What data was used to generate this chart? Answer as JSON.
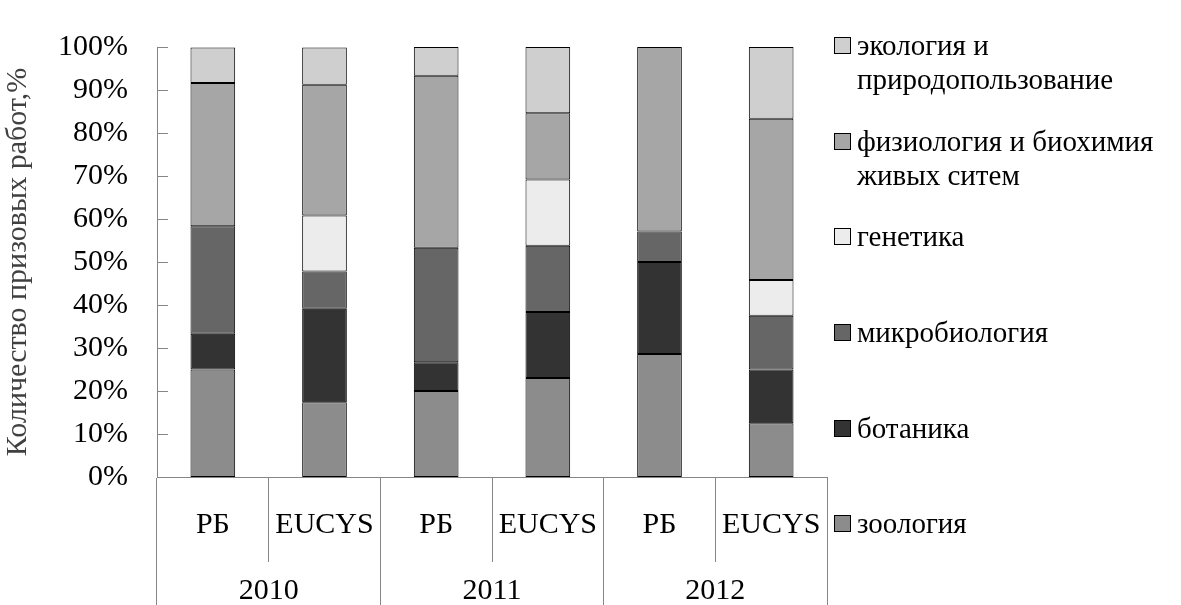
{
  "chart_data": {
    "type": "bar",
    "stacked": true,
    "ylabel": "Количество призовых работ,%",
    "categories": [
      "РБ",
      "EUCYS",
      "РБ",
      "EUCYS",
      "РБ",
      "EUCYS"
    ],
    "annotations": [
      "2010",
      "2011",
      "2012"
    ],
    "series": [
      {
        "name": "зоология",
        "color": "#8c8c8c",
        "values": [
          25,
          17.4,
          20,
          23,
          28.6,
          12.5
        ]
      },
      {
        "name": "ботаника",
        "color": "#333333",
        "values": [
          8.3,
          21.7,
          6.7,
          15.4,
          21.4,
          12.5
        ]
      },
      {
        "name": "микробиология",
        "color": "#666666",
        "values": [
          25,
          8.7,
          26.6,
          15.4,
          7.1,
          12.5
        ]
      },
      {
        "name": "генетика",
        "color": "#ececec",
        "values": [
          0,
          13,
          0,
          15.4,
          0,
          8.3
        ]
      },
      {
        "name": "физиология и биохимия живых ситем",
        "color": "#a6a6a6",
        "values": [
          33.3,
          30.4,
          40,
          15.4,
          42.9,
          37.5
        ]
      },
      {
        "name": "экология и природопользование",
        "color": "#cfcfcf",
        "values": [
          8.3,
          8.7,
          6.7,
          15.4,
          0,
          16.7
        ]
      }
    ],
    "ylim": [
      0,
      100
    ],
    "yticks": [
      {
        "value": 0,
        "label": "0%"
      },
      {
        "value": 10,
        "label": "10%"
      },
      {
        "value": 20,
        "label": "20%"
      },
      {
        "value": 30,
        "label": "30%"
      },
      {
        "value": 40,
        "label": "40%"
      },
      {
        "value": 50,
        "label": "50%"
      },
      {
        "value": 60,
        "label": "60%"
      },
      {
        "value": 70,
        "label": "70%"
      },
      {
        "value": 80,
        "label": "80%"
      },
      {
        "value": 90,
        "label": "90%"
      },
      {
        "value": 100,
        "label": "100%"
      }
    ],
    "grid": false,
    "legend": "right"
  }
}
